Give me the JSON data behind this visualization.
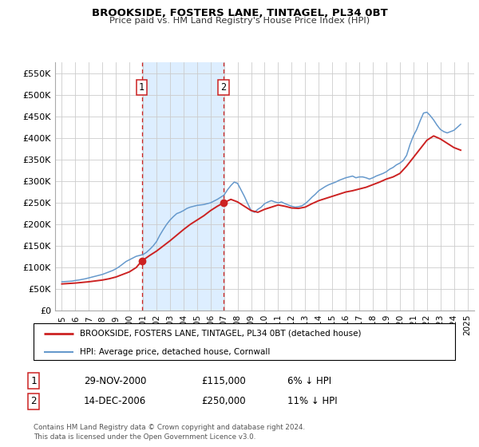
{
  "title": "BROOKSIDE, FOSTERS LANE, TINTAGEL, PL34 0BT",
  "subtitle": "Price paid vs. HM Land Registry's House Price Index (HPI)",
  "legend_line1": "BROOKSIDE, FOSTERS LANE, TINTAGEL, PL34 0BT (detached house)",
  "legend_line2": "HPI: Average price, detached house, Cornwall",
  "footnote": "Contains HM Land Registry data © Crown copyright and database right 2024.\nThis data is licensed under the Open Government Licence v3.0.",
  "sale1_date": "29-NOV-2000",
  "sale1_price": "£115,000",
  "sale1_hpi": "6% ↓ HPI",
  "sale2_date": "14-DEC-2006",
  "sale2_price": "£250,000",
  "sale2_hpi": "11% ↓ HPI",
  "sale1_x": 2000.91,
  "sale1_y": 115000,
  "sale2_x": 2006.96,
  "sale2_y": 250000,
  "vline1_x": 2000.91,
  "vline2_x": 2006.96,
  "hpi_color": "#6699cc",
  "price_color": "#cc2222",
  "dot_color": "#cc2222",
  "shade_color": "#ddeeff",
  "background_color": "#ffffff",
  "grid_color": "#cccccc",
  "ylim": [
    0,
    575000
  ],
  "xlim": [
    1994.5,
    2025.5
  ],
  "yticks": [
    0,
    50000,
    100000,
    150000,
    200000,
    250000,
    300000,
    350000,
    400000,
    450000,
    500000,
    550000
  ],
  "xticks": [
    1995,
    1996,
    1997,
    1998,
    1999,
    2000,
    2001,
    2002,
    2003,
    2004,
    2005,
    2006,
    2007,
    2008,
    2009,
    2010,
    2011,
    2012,
    2013,
    2014,
    2015,
    2016,
    2017,
    2018,
    2019,
    2020,
    2021,
    2022,
    2023,
    2024,
    2025
  ],
  "hpi_x": [
    1995.0,
    1995.25,
    1995.5,
    1995.75,
    1996.0,
    1996.25,
    1996.5,
    1996.75,
    1997.0,
    1997.25,
    1997.5,
    1997.75,
    1998.0,
    1998.25,
    1998.5,
    1998.75,
    1999.0,
    1999.25,
    1999.5,
    1999.75,
    2000.0,
    2000.25,
    2000.5,
    2000.75,
    2001.0,
    2001.25,
    2001.5,
    2001.75,
    2002.0,
    2002.25,
    2002.5,
    2002.75,
    2003.0,
    2003.25,
    2003.5,
    2003.75,
    2004.0,
    2004.25,
    2004.5,
    2004.75,
    2005.0,
    2005.25,
    2005.5,
    2005.75,
    2006.0,
    2006.25,
    2006.5,
    2006.75,
    2007.0,
    2007.25,
    2007.5,
    2007.75,
    2008.0,
    2008.25,
    2008.5,
    2008.75,
    2009.0,
    2009.25,
    2009.5,
    2009.75,
    2010.0,
    2010.25,
    2010.5,
    2010.75,
    2011.0,
    2011.25,
    2011.5,
    2011.75,
    2012.0,
    2012.25,
    2012.5,
    2012.75,
    2013.0,
    2013.25,
    2013.5,
    2013.75,
    2014.0,
    2014.25,
    2014.5,
    2014.75,
    2015.0,
    2015.25,
    2015.5,
    2015.75,
    2016.0,
    2016.25,
    2016.5,
    2016.75,
    2017.0,
    2017.25,
    2017.5,
    2017.75,
    2018.0,
    2018.25,
    2018.5,
    2018.75,
    2019.0,
    2019.25,
    2019.5,
    2019.75,
    2020.0,
    2020.25,
    2020.5,
    2020.75,
    2021.0,
    2021.25,
    2021.5,
    2021.75,
    2022.0,
    2022.25,
    2022.5,
    2022.75,
    2023.0,
    2023.25,
    2023.5,
    2023.75,
    2024.0,
    2024.25,
    2024.5
  ],
  "hpi_y": [
    67000,
    67500,
    68000,
    68500,
    70000,
    71000,
    72500,
    74000,
    76000,
    78000,
    80000,
    82000,
    84000,
    87000,
    90000,
    93000,
    97000,
    102000,
    108000,
    114000,
    118000,
    122000,
    126000,
    128000,
    130000,
    135000,
    142000,
    150000,
    160000,
    175000,
    188000,
    200000,
    210000,
    218000,
    225000,
    228000,
    232000,
    237000,
    240000,
    242000,
    244000,
    245000,
    246000,
    248000,
    250000,
    254000,
    258000,
    263000,
    268000,
    280000,
    290000,
    298000,
    295000,
    280000,
    265000,
    248000,
    232000,
    228000,
    235000,
    240000,
    248000,
    252000,
    255000,
    252000,
    250000,
    252000,
    248000,
    245000,
    242000,
    240000,
    241000,
    243000,
    248000,
    255000,
    263000,
    270000,
    278000,
    283000,
    288000,
    292000,
    295000,
    298000,
    302000,
    305000,
    308000,
    310000,
    312000,
    308000,
    310000,
    310000,
    308000,
    305000,
    308000,
    312000,
    315000,
    318000,
    322000,
    328000,
    332000,
    338000,
    342000,
    348000,
    360000,
    385000,
    405000,
    420000,
    440000,
    458000,
    460000,
    452000,
    442000,
    430000,
    420000,
    415000,
    412000,
    415000,
    418000,
    425000,
    432000
  ],
  "price_x": [
    1995.0,
    1995.5,
    1996.0,
    1996.5,
    1997.0,
    1997.5,
    1998.0,
    1998.5,
    1999.0,
    1999.5,
    2000.0,
    2000.5,
    2000.91,
    2001.5,
    2002.0,
    2002.5,
    2003.0,
    2003.5,
    2004.0,
    2004.5,
    2005.0,
    2005.5,
    2006.0,
    2006.5,
    2006.96,
    2007.5,
    2008.0,
    2008.5,
    2009.0,
    2009.5,
    2010.0,
    2010.5,
    2011.0,
    2011.5,
    2012.0,
    2012.5,
    2013.0,
    2013.5,
    2014.0,
    2014.5,
    2015.0,
    2015.5,
    2016.0,
    2016.5,
    2017.0,
    2017.5,
    2018.0,
    2018.5,
    2019.0,
    2019.5,
    2020.0,
    2020.5,
    2021.0,
    2021.5,
    2022.0,
    2022.5,
    2023.0,
    2023.5,
    2024.0,
    2024.5
  ],
  "price_y": [
    62000,
    63000,
    64000,
    65500,
    67000,
    69000,
    71000,
    74000,
    78000,
    84000,
    90000,
    100000,
    115000,
    128000,
    138000,
    150000,
    162000,
    175000,
    188000,
    200000,
    210000,
    220000,
    232000,
    242000,
    250000,
    258000,
    252000,
    242000,
    232000,
    228000,
    235000,
    240000,
    245000,
    242000,
    238000,
    237000,
    240000,
    248000,
    255000,
    260000,
    265000,
    270000,
    275000,
    278000,
    282000,
    286000,
    292000,
    298000,
    305000,
    310000,
    318000,
    335000,
    355000,
    375000,
    395000,
    405000,
    398000,
    388000,
    378000,
    372000
  ]
}
